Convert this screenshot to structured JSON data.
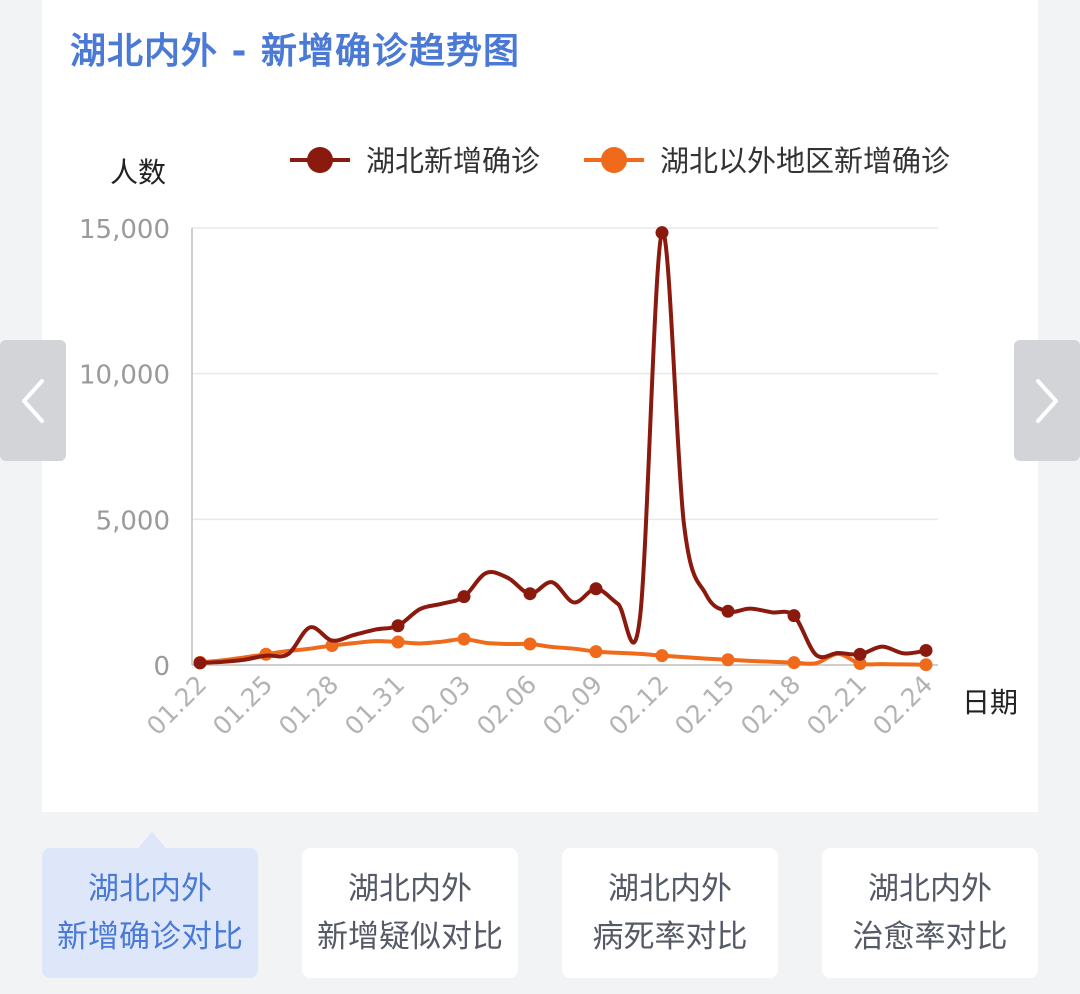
{
  "page": {
    "title": "湖北内外 - 新增确诊趋势图"
  },
  "tabs": [
    {
      "line1": "湖北内外",
      "line2": "新增确诊对比",
      "active": true
    },
    {
      "line1": "湖北内外",
      "line2": "新增疑似对比",
      "active": false
    },
    {
      "line1": "湖北内外",
      "line2": "病死率对比",
      "active": false
    },
    {
      "line1": "湖北内外",
      "line2": "治愈率对比",
      "active": false
    }
  ],
  "nav": {
    "prev_icon": "chevron-left-icon",
    "next_icon": "chevron-right-icon"
  },
  "colors": {
    "title": "#4a79d6",
    "hubei": "#8b1a0e",
    "outside": "#f06a1c",
    "grid": "#e8e8e8",
    "axis": "#9a9a9a"
  },
  "chart_data": {
    "type": "line",
    "ylabel": "人数",
    "xlabel": "日期",
    "ylim": [
      0,
      15000
    ],
    "yticks": [
      0,
      5000,
      10000,
      15000
    ],
    "ytick_labels": [
      "0",
      "5,000",
      "10,000",
      "15,000"
    ],
    "x_tick_labels": [
      "01.22",
      "01.25",
      "01.28",
      "01.31",
      "02.03",
      "02.06",
      "02.09",
      "02.12",
      "02.15",
      "02.18",
      "02.21",
      "02.24"
    ],
    "x": [
      "01.22",
      "01.23",
      "01.24",
      "01.25",
      "01.26",
      "01.27",
      "01.28",
      "01.29",
      "01.30",
      "01.31",
      "02.01",
      "02.02",
      "02.03",
      "02.04",
      "02.05",
      "02.06",
      "02.07",
      "02.08",
      "02.09",
      "02.10",
      "02.11",
      "02.12",
      "02.13",
      "02.14",
      "02.15",
      "02.16",
      "02.17",
      "02.18",
      "02.19",
      "02.20",
      "02.21",
      "02.22",
      "02.23",
      "02.24"
    ],
    "grid": true,
    "legend": "top",
    "series": [
      {
        "name": "湖北新增确诊",
        "color": "#8b1a0e",
        "values": [
          70,
          105,
          180,
          323,
          371,
          1291,
          840,
          1032,
          1220,
          1347,
          1921,
          2103,
          2345,
          3156,
          2987,
          2447,
          2841,
          2147,
          2618,
          2097,
          1638,
          14840,
          4823,
          2420,
          1843,
          1933,
          1807,
          1693,
          349,
          411,
          366,
          630,
          398,
          499
        ],
        "markers": [
          0,
          9,
          12,
          15,
          18,
          21,
          24,
          27,
          30,
          33
        ]
      },
      {
        "name": "湖北以外地区新增确诊",
        "color": "#f06a1c",
        "values": [
          90,
          160,
          260,
          370,
          480,
          560,
          670,
          750,
          820,
          790,
          740,
          800,
          890,
          760,
          720,
          720,
          620,
          560,
          460,
          420,
          380,
          320,
          270,
          220,
          180,
          140,
          110,
          80,
          60,
          380,
          50,
          30,
          20,
          10
        ],
        "markers": [
          0,
          3,
          6,
          9,
          12,
          15,
          18,
          21,
          24,
          27,
          30,
          33
        ]
      }
    ]
  }
}
